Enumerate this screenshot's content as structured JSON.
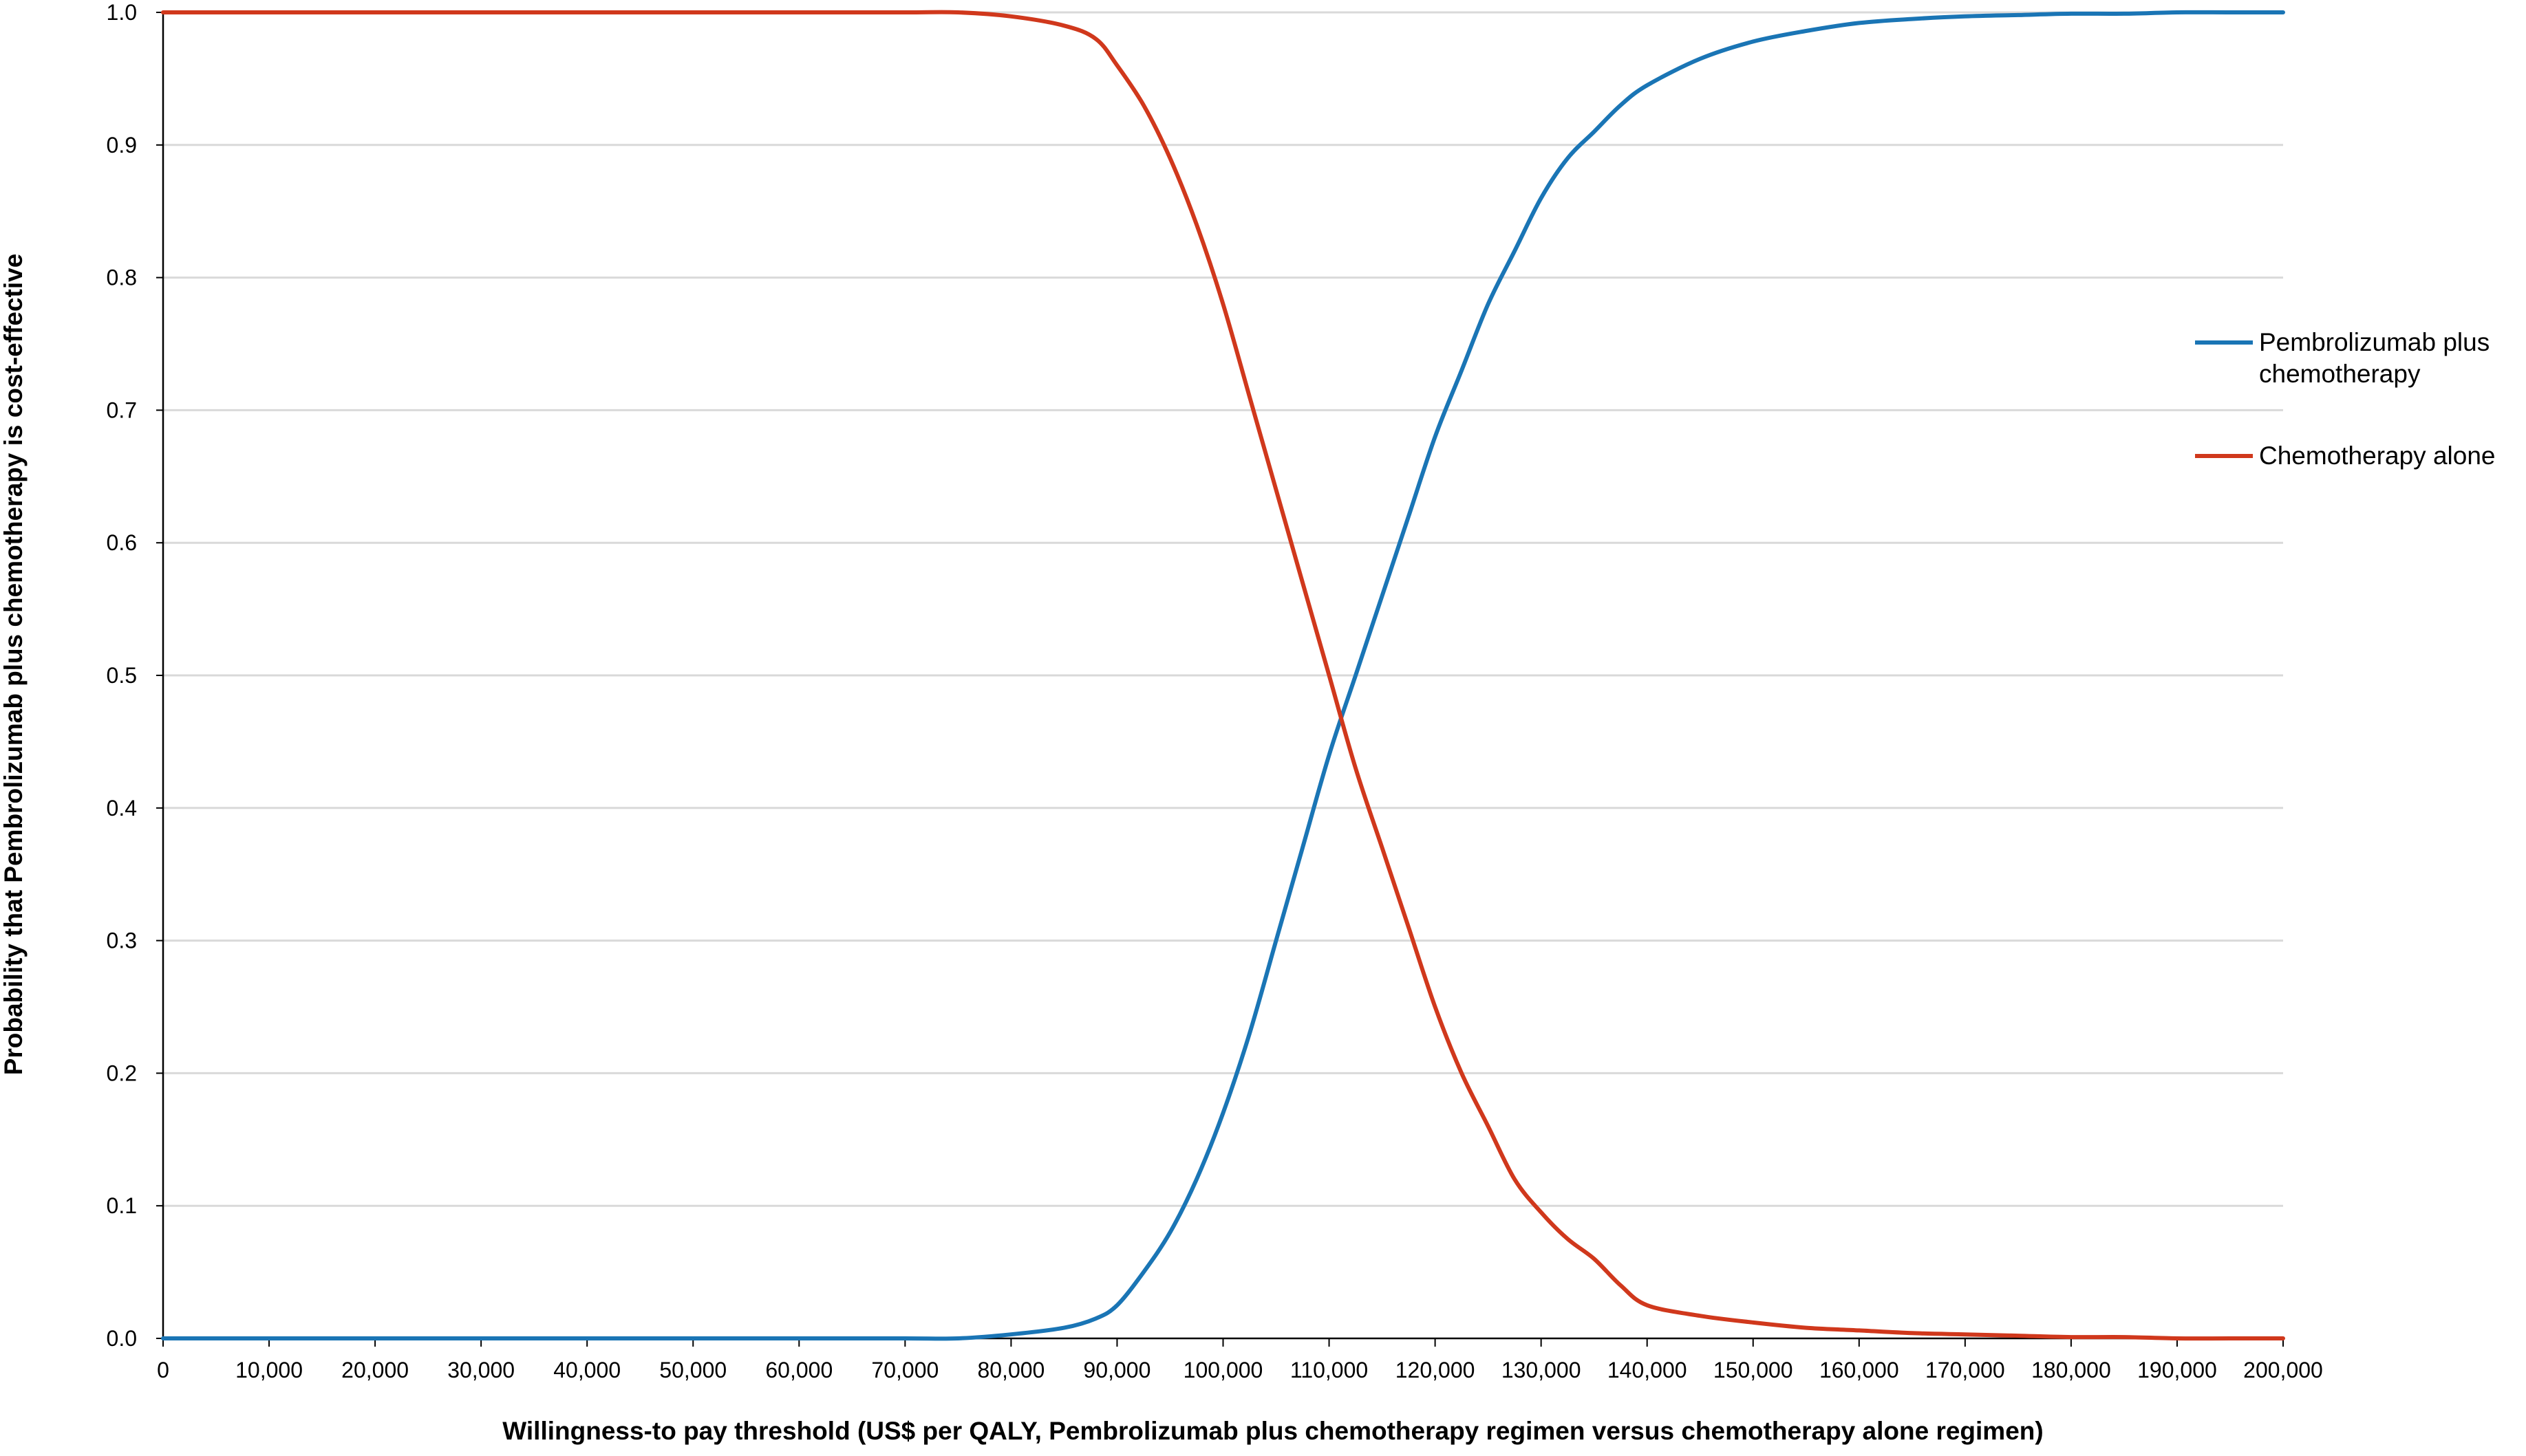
{
  "chart_data": {
    "type": "line",
    "title": "",
    "xlabel": "Willingness-to pay threshold (US$ per QALY, Pembrolizumab plus chemotherapy regimen versus chemotherapy alone regimen)",
    "ylabel": "Probability that Pembrolizumab plus chemotherapy is cost-effective",
    "xlim": [
      0,
      200000
    ],
    "ylim": [
      0,
      1
    ],
    "x_ticks": [
      "0",
      "10,000",
      "20,000",
      "30,000",
      "40,000",
      "50,000",
      "60,000",
      "70,000",
      "80,000",
      "90,000",
      "100,000",
      "110,000",
      "120,000",
      "130,000",
      "140,000",
      "150,000",
      "160,000",
      "170,000",
      "180,000",
      "190,000",
      "200,000"
    ],
    "y_ticks": [
      "0.0",
      "0.1",
      "0.2",
      "0.3",
      "0.4",
      "0.5",
      "0.6",
      "0.7",
      "0.8",
      "0.9",
      "1.0"
    ],
    "grid": "horizontal",
    "legend_position": "right",
    "x": [
      0,
      10000,
      20000,
      30000,
      40000,
      50000,
      60000,
      70000,
      75000,
      80000,
      85000,
      88000,
      90000,
      92500,
      95000,
      97500,
      100000,
      102500,
      105000,
      107500,
      110000,
      112500,
      115000,
      117500,
      120000,
      122500,
      125000,
      127500,
      130000,
      132500,
      135000,
      137500,
      140000,
      145000,
      150000,
      155000,
      160000,
      165000,
      170000,
      175000,
      180000,
      185000,
      190000,
      195000,
      200000
    ],
    "series": [
      {
        "name": "Pembrolizumab plus chemotherapy",
        "color": "#1a75b5",
        "values": [
          0,
          0,
          0,
          0,
          0,
          0,
          0,
          0,
          0,
          0.003,
          0.008,
          0.015,
          0.025,
          0.05,
          0.08,
          0.12,
          0.17,
          0.23,
          0.3,
          0.37,
          0.44,
          0.5,
          0.56,
          0.62,
          0.68,
          0.73,
          0.78,
          0.82,
          0.86,
          0.89,
          0.91,
          0.93,
          0.945,
          0.965,
          0.978,
          0.986,
          0.992,
          0.995,
          0.997,
          0.998,
          0.999,
          0.999,
          1.0,
          1.0,
          1.0
        ]
      },
      {
        "name": "Chemotherapy alone",
        "color": "#d0381c",
        "values": [
          1.0,
          1.0,
          1.0,
          1.0,
          1.0,
          1.0,
          1.0,
          1.0,
          1.0,
          0.997,
          0.99,
          0.98,
          0.96,
          0.93,
          0.89,
          0.84,
          0.78,
          0.71,
          0.64,
          0.57,
          0.5,
          0.43,
          0.37,
          0.31,
          0.25,
          0.2,
          0.16,
          0.12,
          0.095,
          0.075,
          0.06,
          0.04,
          0.025,
          0.017,
          0.012,
          0.008,
          0.006,
          0.004,
          0.003,
          0.002,
          0.001,
          0.001,
          0,
          0,
          0
        ]
      }
    ],
    "legend": [
      {
        "lines": [
          "Pembrolizumab plus",
          "chemotherapy"
        ],
        "color": "#1a75b5"
      },
      {
        "lines": [
          "Chemotherapy alone"
        ],
        "color": "#d0381c"
      }
    ]
  }
}
